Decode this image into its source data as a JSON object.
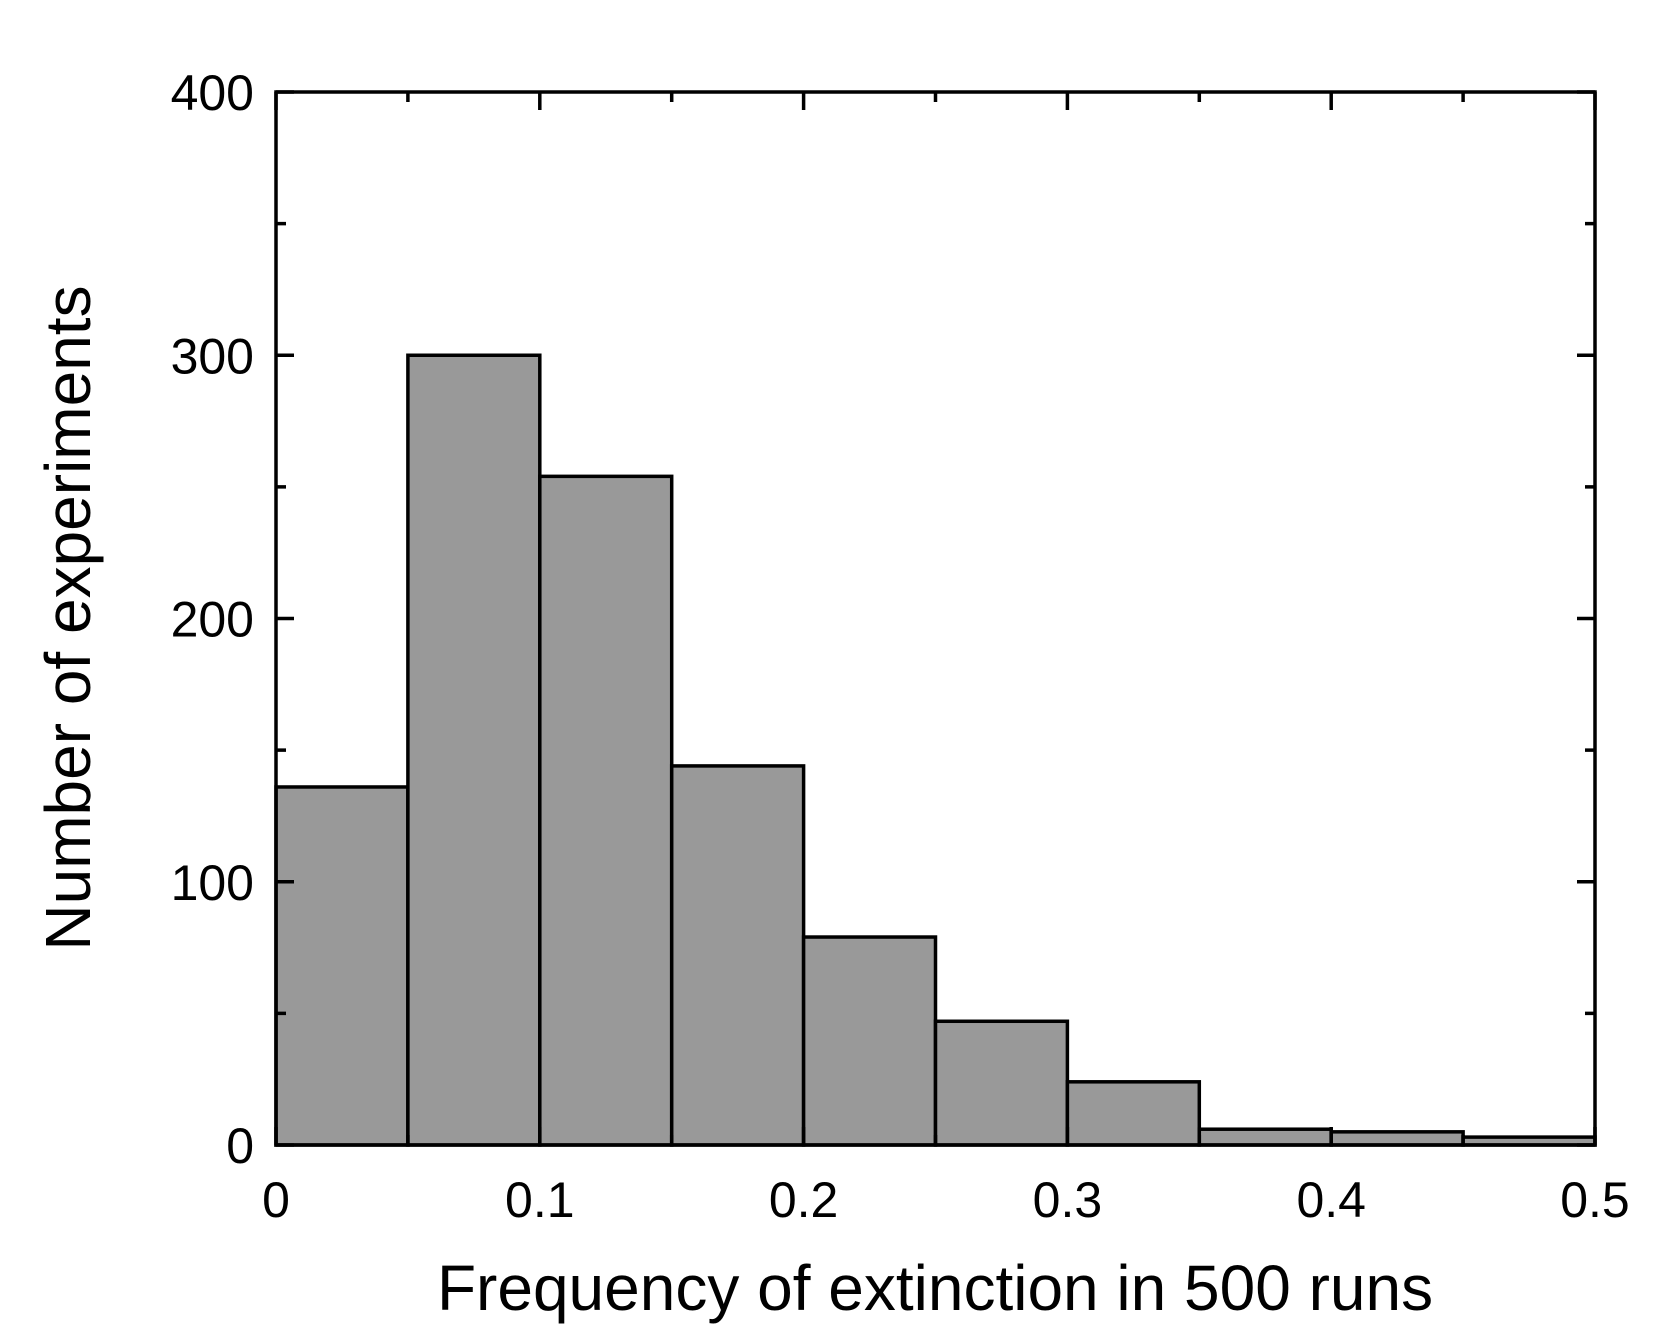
{
  "chart_data": {
    "type": "bar",
    "title": "",
    "xlabel": "Frequency of extinction in 500 runs",
    "ylabel": "Number of experiments",
    "xlim": [
      0,
      0.5
    ],
    "ylim": [
      0,
      400
    ],
    "xticks": [
      0,
      0.1,
      0.2,
      0.3,
      0.4,
      0.5
    ],
    "xtick_labels": [
      "0",
      "0.1",
      "0.2",
      "0.3",
      "0.4",
      "0.5"
    ],
    "xticks_minor": [
      0.05,
      0.15,
      0.25,
      0.35,
      0.45
    ],
    "yticks": [
      0,
      100,
      200,
      300,
      400
    ],
    "ytick_labels": [
      "0",
      "100",
      "200",
      "300",
      "400"
    ],
    "yticks_minor": [
      50,
      150,
      250,
      350
    ],
    "bins": [
      {
        "x0": 0.0,
        "x1": 0.05,
        "count": 136
      },
      {
        "x0": 0.05,
        "x1": 0.1,
        "count": 300
      },
      {
        "x0": 0.1,
        "x1": 0.15,
        "count": 254
      },
      {
        "x0": 0.15,
        "x1": 0.2,
        "count": 144
      },
      {
        "x0": 0.2,
        "x1": 0.25,
        "count": 79
      },
      {
        "x0": 0.25,
        "x1": 0.3,
        "count": 47
      },
      {
        "x0": 0.3,
        "x1": 0.35,
        "count": 24
      },
      {
        "x0": 0.35,
        "x1": 0.4,
        "count": 6
      },
      {
        "x0": 0.4,
        "x1": 0.45,
        "count": 5
      },
      {
        "x0": 0.45,
        "x1": 0.5,
        "count": 3
      }
    ],
    "bar_fill": "#999999",
    "bar_stroke": "#000000",
    "grid": false,
    "legend": "none"
  }
}
